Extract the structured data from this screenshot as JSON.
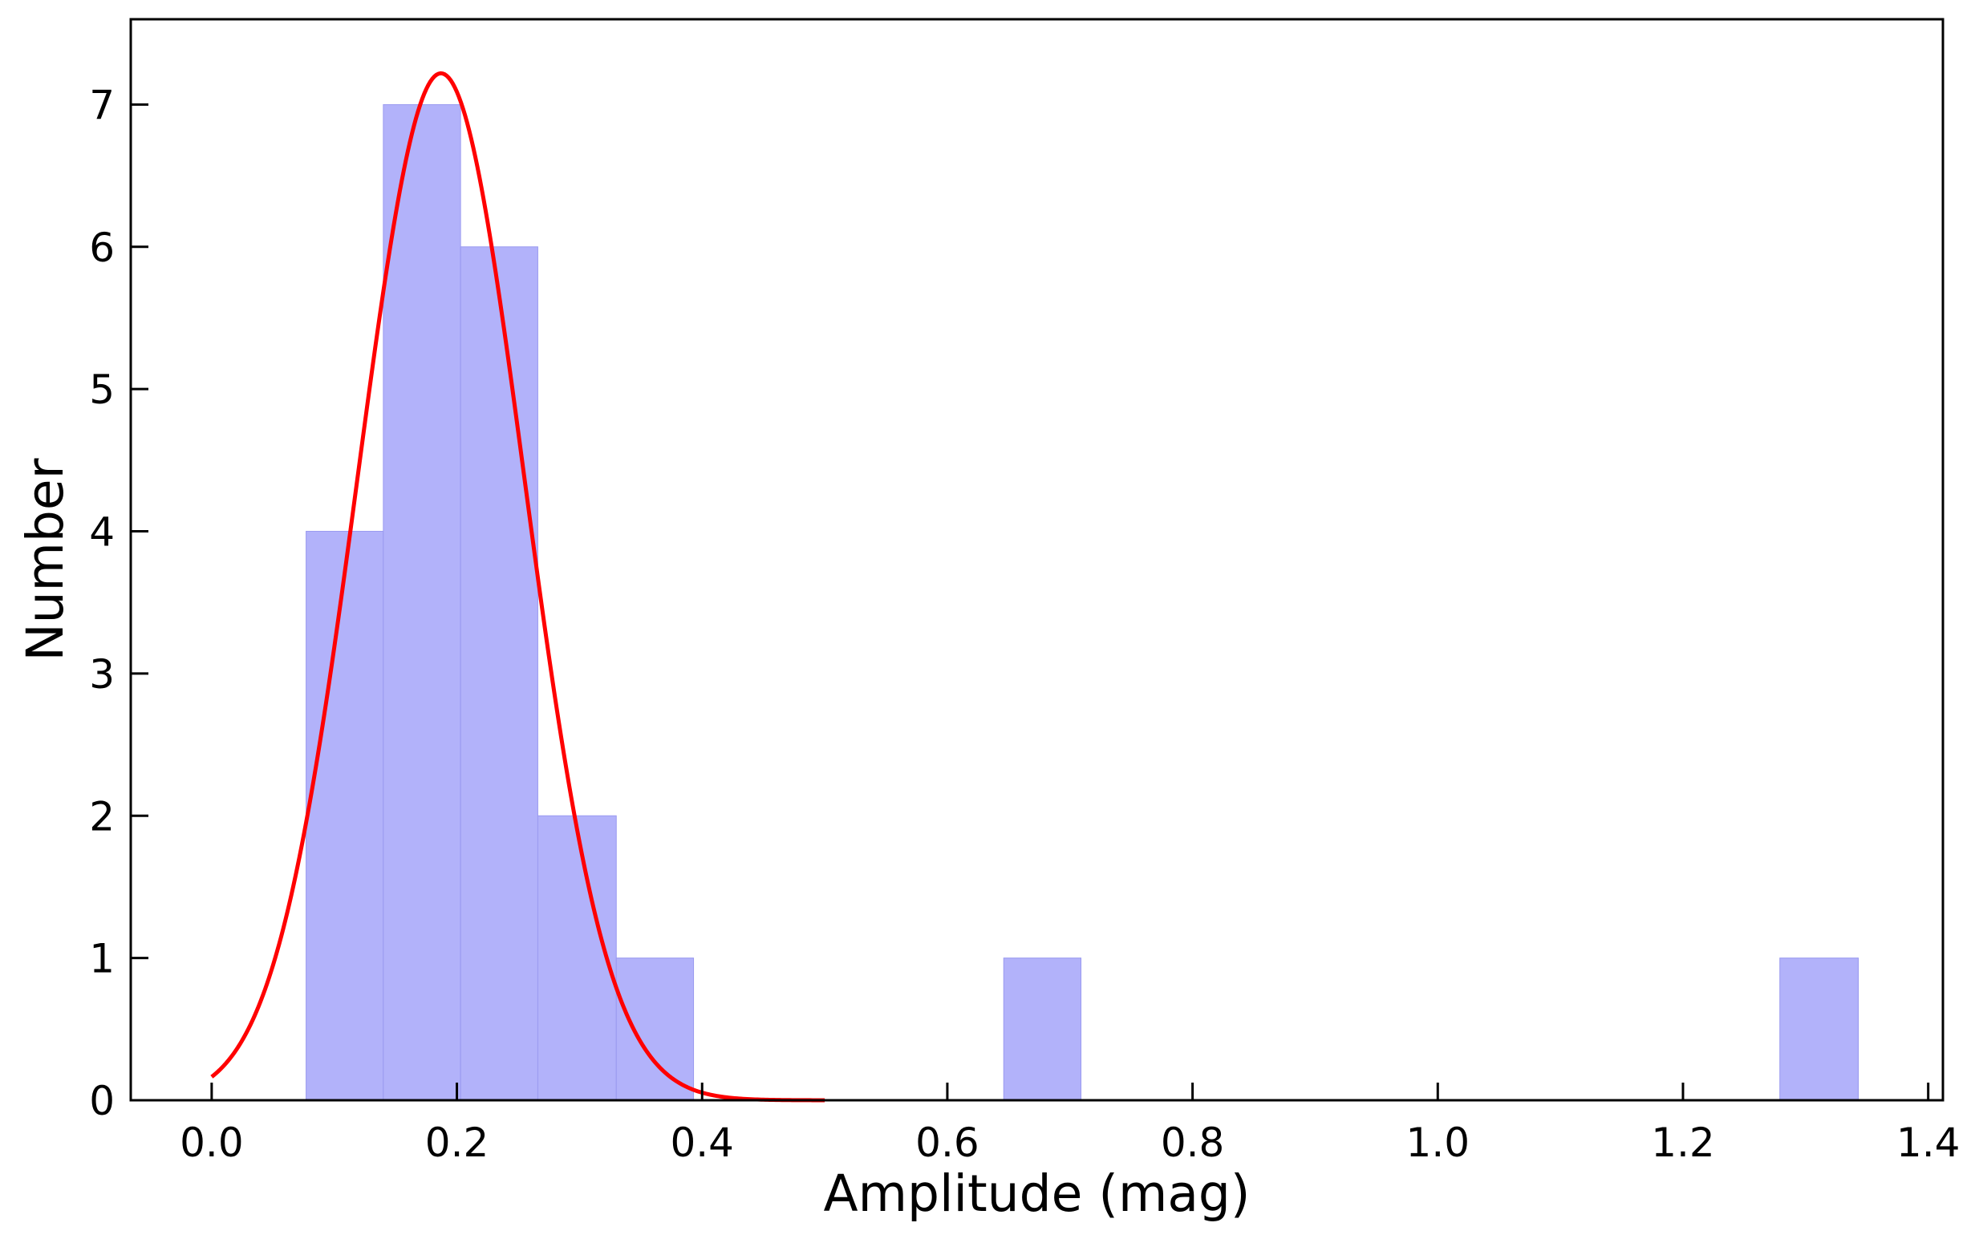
{
  "chart_data": {
    "type": "bar",
    "xlabel": "Amplitude (mag)",
    "ylabel": "Number",
    "xlim": [
      -0.066,
      1.412
    ],
    "ylim": [
      0,
      7.6
    ],
    "x_ticks": [
      0.0,
      0.2,
      0.4,
      0.6,
      0.8,
      1.0,
      1.2,
      1.4
    ],
    "x_tick_labels": [
      "0.0",
      "0.2",
      "0.4",
      "0.6",
      "0.8",
      "1.0",
      "1.2",
      "1.4"
    ],
    "y_ticks": [
      0,
      1,
      2,
      3,
      4,
      5,
      6,
      7
    ],
    "y_tick_labels": [
      "0",
      "1",
      "2",
      "3",
      "4",
      "5",
      "6",
      "7"
    ],
    "bins": [
      {
        "x0": 0.077,
        "x1": 0.14,
        "count": 4
      },
      {
        "x0": 0.14,
        "x1": 0.203,
        "count": 7
      },
      {
        "x0": 0.203,
        "x1": 0.266,
        "count": 6
      },
      {
        "x0": 0.266,
        "x1": 0.33,
        "count": 2
      },
      {
        "x0": 0.33,
        "x1": 0.393,
        "count": 1
      },
      {
        "x0": 0.646,
        "x1": 0.709,
        "count": 1
      },
      {
        "x0": 1.279,
        "x1": 1.343,
        "count": 1
      }
    ],
    "gaussian_fit": {
      "amplitude": 7.22,
      "mean": 0.187,
      "sigma": 0.068,
      "x_range": [
        0.0,
        0.5
      ]
    },
    "grid": false,
    "colors": {
      "bars": "#b2b2fa",
      "bar_edges": "#9a9af0",
      "fit_line": "#ff0000",
      "axes": "#000000"
    }
  }
}
